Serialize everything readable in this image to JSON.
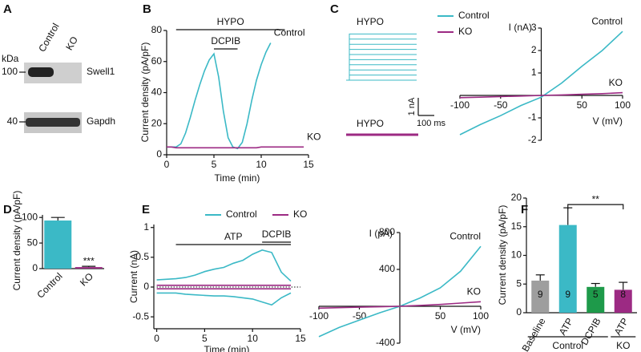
{
  "panel_a": {
    "panel_label": "A",
    "lanes": [
      "Control",
      "KO"
    ],
    "unit": "kDa",
    "markers": [
      100,
      40
    ],
    "proteins": [
      "Swell1",
      "Gapdh"
    ]
  },
  "panel_c_traces": {
    "panel_label": "C",
    "top_label": "HYPO",
    "bottom_label": "HYPO",
    "scale_y": "1 nA",
    "scale_x": "100 ms"
  },
  "chart_data": [
    {
      "type": "line",
      "panel_label": "B",
      "xlabel": "Time  (min)",
      "ylabel": "Current density (pA/pF)",
      "x": [
        0,
        0.5,
        1,
        1.5,
        2,
        2.5,
        3,
        3.5,
        4,
        4.5,
        5,
        5.5,
        6,
        6.5,
        7,
        7.5,
        8,
        8.5,
        9,
        9.5,
        10,
        10.5,
        11,
        11.5,
        12,
        12.5,
        13,
        13.5,
        14,
        14.5
      ],
      "xlim": [
        0,
        15
      ],
      "xticks": [
        0,
        5,
        10,
        15
      ],
      "ylim": [
        0,
        80
      ],
      "yticks": [
        0,
        20,
        40,
        60,
        80
      ],
      "series": [
        {
          "name": "Control",
          "color": "#3bb9c6",
          "end_label": "Control",
          "values": [
            5,
            5,
            5,
            7,
            14,
            24,
            35,
            45,
            54,
            61,
            65,
            50,
            28,
            11,
            5,
            4,
            8,
            20,
            35,
            48,
            58,
            66,
            72,
            null,
            null,
            null,
            null,
            null,
            null,
            null
          ]
        },
        {
          "name": "KO",
          "color": "#9c2a83",
          "end_label": "KO",
          "values": [
            5,
            5,
            4.5,
            4.5,
            4.5,
            4.5,
            4.5,
            4.5,
            4.5,
            4.5,
            4.5,
            4.5,
            4.5,
            4.5,
            4.5,
            4.5,
            4.5,
            4.5,
            4.5,
            4.5,
            5,
            5,
            5,
            5,
            5,
            5,
            5,
            5,
            5,
            5
          ]
        }
      ],
      "treatments": [
        {
          "label": "HYPO",
          "start": 1,
          "end": 12.5
        },
        {
          "label": "DCPIB",
          "start": 5,
          "end": 7.5
        }
      ]
    },
    {
      "type": "line",
      "axes_at_zero": true,
      "legend": true,
      "xlabel": "V (mV)",
      "ylabel": "I (nA)",
      "x": [
        -100,
        -75,
        -50,
        -25,
        0,
        25,
        50,
        75,
        100
      ],
      "xlim": [
        -100,
        100
      ],
      "xticks": [
        -100,
        -50,
        50,
        100
      ],
      "ylim": [
        -2,
        3
      ],
      "yticks": [
        -2,
        -1,
        1,
        2,
        3
      ],
      "series": [
        {
          "name": "Control",
          "color": "#3bb9c6",
          "end_label": "Control",
          "values": [
            -1.75,
            -1.3,
            -0.9,
            -0.45,
            -0.08,
            0.55,
            1.3,
            2.0,
            2.85
          ]
        },
        {
          "name": "KO",
          "color": "#9c2a83",
          "end_label": "KO",
          "values": [
            -0.1,
            -0.08,
            -0.05,
            -0.03,
            0,
            0.02,
            0.05,
            0.08,
            0.12
          ]
        }
      ]
    },
    {
      "type": "bar",
      "panel_label": "D",
      "ylabel": "Current density (pA/pF)",
      "categories": [
        "Control",
        "KO"
      ],
      "values": [
        94,
        3
      ],
      "errors": [
        6,
        1.5
      ],
      "colors": [
        "#3bb9c6",
        "#9c2a83"
      ],
      "ylim": [
        0,
        105
      ],
      "yticks": [
        0,
        50,
        100
      ],
      "significance": [
        {
          "label": "***",
          "category": 1
        }
      ]
    },
    {
      "type": "line",
      "panel_label": "E",
      "legend": true,
      "zero_line": "dotted",
      "xlabel": "Time (min)",
      "ylabel": "Current (nA)",
      "x": [
        0,
        1,
        2,
        3,
        4,
        5,
        6,
        7,
        8,
        9,
        10,
        11,
        12,
        13,
        14
      ],
      "xlim": [
        -0.3,
        15
      ],
      "xticks": [
        0,
        5,
        10,
        15
      ],
      "ylim": [
        -0.7,
        1.05
      ],
      "yticks": [
        -0.5,
        0,
        0.5,
        1
      ],
      "series": [
        {
          "name": "Control",
          "color": "#3bb9c6",
          "values": [
            0.12,
            0.13,
            0.14,
            0.16,
            0.2,
            0.26,
            0.3,
            0.33,
            0.4,
            0.45,
            0.55,
            0.62,
            0.58,
            0.25,
            0.1
          ],
          "inward_values": [
            -0.1,
            -0.1,
            -0.1,
            -0.12,
            -0.13,
            -0.14,
            -0.15,
            -0.15,
            -0.16,
            -0.18,
            -0.2,
            -0.25,
            -0.3,
            -0.18,
            -0.1
          ]
        },
        {
          "name": "KO",
          "color": "#9c2a83",
          "values": [
            0.03,
            0.03,
            0.03,
            0.03,
            0.03,
            0.03,
            0.03,
            0.03,
            0.03,
            0.03,
            0.03,
            0.03,
            0.03,
            0.03,
            0.03
          ],
          "inward_values": [
            -0.03,
            -0.03,
            -0.03,
            -0.03,
            -0.03,
            -0.03,
            -0.03,
            -0.03,
            -0.03,
            -0.03,
            -0.03,
            -0.03,
            -0.03,
            -0.03,
            -0.03
          ]
        }
      ],
      "treatments": [
        {
          "label": "ATP",
          "start": 2,
          "end": 14
        },
        {
          "label": "DCPIB",
          "start": 11,
          "end": 14
        }
      ]
    },
    {
      "type": "line",
      "axes_at_zero": true,
      "xlabel": "V (mV)",
      "ylabel": "I (pA)",
      "x": [
        -100,
        -75,
        -50,
        -25,
        0,
        25,
        50,
        75,
        100
      ],
      "xlim": [
        -100,
        100
      ],
      "xticks": [
        -100,
        -50,
        50,
        100
      ],
      "ylim": [
        -400,
        800
      ],
      "yticks": [
        -400,
        400,
        800
      ],
      "series": [
        {
          "name": "Control",
          "color": "#3bb9c6",
          "end_label": "Control",
          "values": [
            -330,
            -230,
            -150,
            -70,
            0,
            90,
            200,
            380,
            650
          ]
        },
        {
          "name": "KO",
          "color": "#9c2a83",
          "end_label": "KO",
          "values": [
            -20,
            -15,
            -10,
            -5,
            0,
            10,
            20,
            35,
            50
          ]
        }
      ]
    },
    {
      "type": "bar",
      "panel_label": "F",
      "ylabel": "Current density (pA/pF)",
      "categories": [
        "Baseline",
        "ATP",
        "DCPIB",
        "ATP"
      ],
      "values": [
        5.6,
        15.3,
        4.5,
        4.0
      ],
      "errors": [
        1,
        3,
        0.6,
        1.3
      ],
      "colors": [
        "#9e9e9e",
        "#3bb9c6",
        "#1e9a4a",
        "#9c2a83"
      ],
      "n": [
        9,
        9,
        5,
        8
      ],
      "ylim": [
        0,
        20
      ],
      "yticks": [
        0,
        5,
        10,
        15,
        20
      ],
      "significance": [
        {
          "label": "**",
          "between": [
            1,
            3
          ]
        }
      ],
      "groups": [
        {
          "label": "Control",
          "span": [
            0,
            2
          ]
        },
        {
          "label": "KO",
          "span": [
            3,
            3
          ]
        }
      ]
    }
  ]
}
